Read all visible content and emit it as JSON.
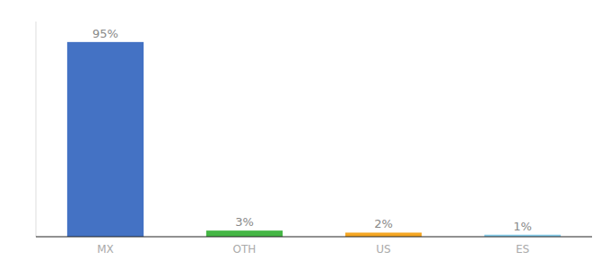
{
  "chart_data": {
    "type": "bar",
    "categories": [
      "MX",
      "OTH",
      "US",
      "ES"
    ],
    "values": [
      95,
      3,
      2,
      1
    ],
    "value_labels": [
      "95%",
      "3%",
      "2%",
      "1%"
    ],
    "colors": [
      "#4472c4",
      "#45b645",
      "#f5a623",
      "#87ceeb"
    ],
    "ylim": [
      0,
      105
    ],
    "data_labels": true,
    "tick_labels": "x",
    "grid": false
  }
}
